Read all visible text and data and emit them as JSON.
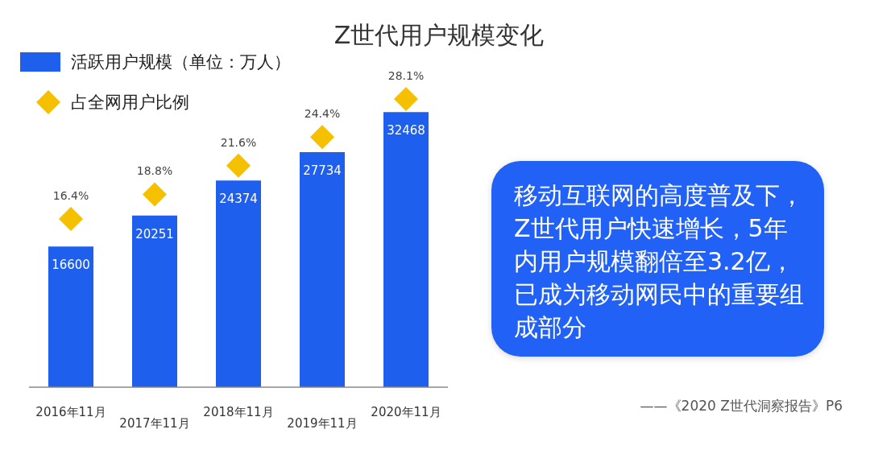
{
  "chart_data": {
    "type": "bar",
    "title": "Z世代用户规模变化",
    "categories": [
      "2016年11月",
      "2017年11月",
      "2018年11月",
      "2019年11月",
      "2020年11月"
    ],
    "series": [
      {
        "name": "活跃用户规模（单位：万人）",
        "color": "#1f5fee",
        "values": [
          16600,
          20251,
          24374,
          27734,
          32468
        ],
        "value_labels": [
          "16600",
          "20251",
          "24374",
          "27734",
          "32468"
        ]
      },
      {
        "name": "占全网用户比例",
        "type": "scatter",
        "axis": "y2",
        "color": "#f5c000",
        "values": [
          16.4,
          18.8,
          21.6,
          24.4,
          28.1
        ],
        "value_labels": [
          "16.4%",
          "18.8%",
          "21.6%",
          "24.4%",
          "28.1%"
        ]
      }
    ],
    "tick_labels": "x",
    "legend": "top left",
    "marker": "diamond",
    "annotations": [
      "移动互联网的高度普及下，Z世代用户快速增长，5年内用户规模翻倍至3.2亿，已成为移动网民中的重要组成部分",
      "——《2020 Z世代洞察报告》P6"
    ]
  }
}
